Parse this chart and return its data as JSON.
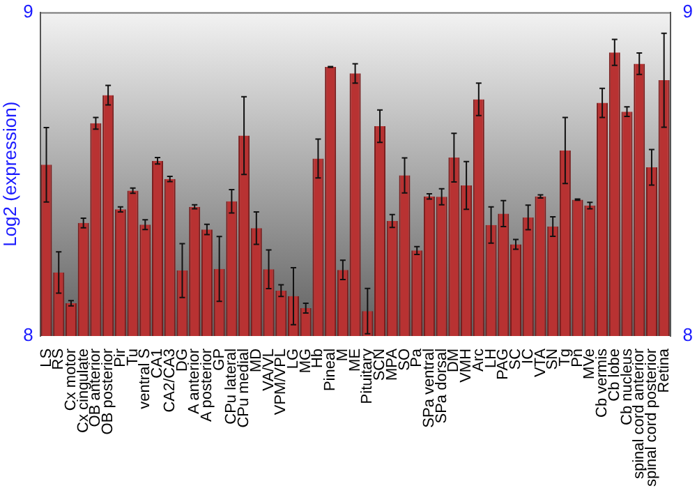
{
  "chart_data": {
    "type": "bar",
    "ylabel": "Log2 (expression)",
    "categories": [
      "LS",
      "RS",
      "Cx motor",
      "Cx cingulate",
      "OB anterior",
      "OB posterior",
      "Pir",
      "Tu",
      "ventral S",
      "CA1",
      "CA2/CA3",
      "DG",
      "A anterior",
      "A posterior",
      "GP",
      "CPu lateral",
      "CPu medial",
      "MD",
      "VA/VL",
      "VPM/VPL",
      "LG",
      "MG",
      "Hb",
      "Pineal",
      "M",
      "ME",
      "Pituitary",
      "SCN",
      "MPA",
      "SO",
      "Pa",
      "SPa ventral",
      "SPa dorsal",
      "DM",
      "VMH",
      "Arc",
      "LH",
      "PAG",
      "SC",
      "IC",
      "VTA",
      "SN",
      "Tg",
      "Pn",
      "MVe",
      "Cb vermis",
      "Cb lobe",
      "Cb nucleus",
      "spinal cord anterior",
      "spinal cord posterior",
      "Retina"
    ],
    "values": [
      8.529,
      8.196,
      8.101,
      8.349,
      8.657,
      8.744,
      8.391,
      8.449,
      8.344,
      8.541,
      8.485,
      8.202,
      8.399,
      8.329,
      8.207,
      8.416,
      8.619,
      8.333,
      8.206,
      8.14,
      8.123,
      8.086,
      8.548,
      8.831,
      8.204,
      8.811,
      8.077,
      8.648,
      8.355,
      8.496,
      8.264,
      8.431,
      8.43,
      8.551,
      8.465,
      8.731,
      8.343,
      8.378,
      8.283,
      8.366,
      8.431,
      8.338,
      8.573,
      8.421,
      8.403,
      8.72,
      8.876,
      8.693,
      8.841,
      8.521,
      8.79
    ],
    "errors": [
      0.115,
      0.064,
      0.008,
      0.015,
      0.018,
      0.03,
      0.008,
      0.008,
      0.015,
      0.01,
      0.008,
      0.083,
      0.006,
      0.016,
      0.1,
      0.036,
      0.12,
      0.05,
      0.06,
      0.018,
      0.088,
      0.015,
      0.06,
      0.001,
      0.03,
      0.03,
      0.07,
      0.05,
      0.02,
      0.054,
      0.012,
      0.008,
      0.025,
      0.075,
      0.074,
      0.05,
      0.056,
      0.04,
      0.015,
      0.038,
      0.005,
      0.03,
      0.102,
      0.002,
      0.01,
      0.045,
      0.04,
      0.015,
      0.033,
      0.055,
      0.145
    ],
    "color": "#b83232",
    "ylim": [
      8,
      9
    ],
    "yticks": [
      8,
      9
    ],
    "y2lim": [
      8,
      9
    ],
    "y2ticks": [
      8,
      9
    ],
    "grid": false,
    "legend": false
  }
}
